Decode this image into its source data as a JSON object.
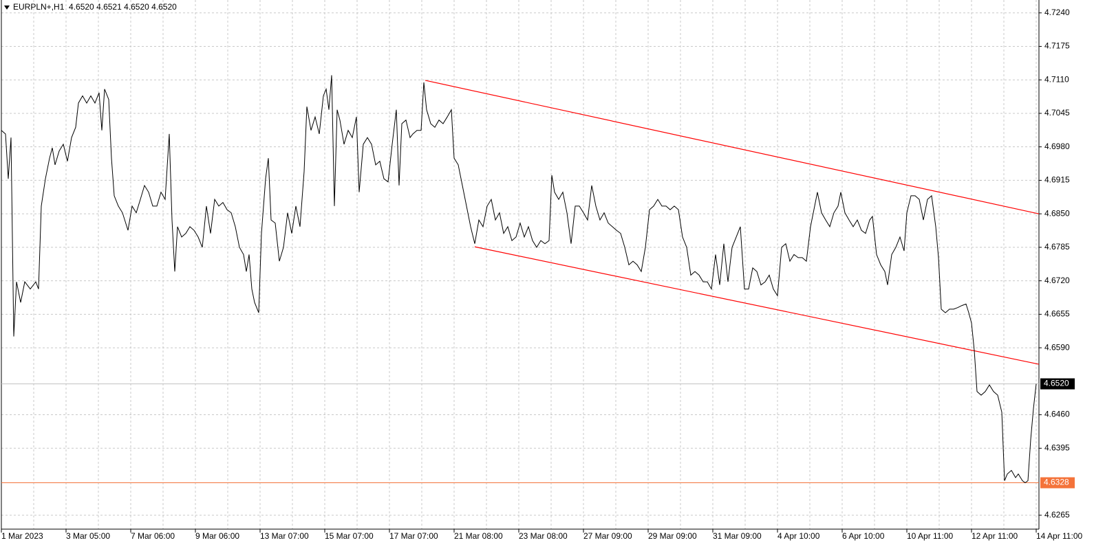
{
  "chart_data": {
    "type": "line",
    "title": "EURPLN+,H1  4.6520 4.6521 4.6520 4.6520",
    "color": "#000000",
    "x": [
      0,
      3,
      5,
      7,
      9,
      11,
      14,
      17,
      21,
      25,
      27,
      29,
      32,
      35,
      37,
      39,
      42,
      45,
      48,
      51,
      54,
      56,
      59,
      62,
      65,
      68,
      71,
      73,
      75,
      78,
      80,
      82,
      85,
      88,
      92,
      95,
      98,
      101,
      104,
      107,
      110,
      113,
      116,
      119,
      122,
      124,
      126,
      128,
      131,
      134,
      137,
      140,
      143,
      146,
      149,
      152,
      155,
      158,
      161,
      164,
      167,
      170,
      173,
      176,
      178,
      180,
      182,
      184,
      187,
      189,
      192,
      194,
      196,
      199,
      202,
      205,
      208,
      211,
      214,
      217,
      220,
      222,
      225,
      228,
      231,
      234,
      236,
      238,
      240,
      242,
      244,
      246,
      249,
      252,
      255,
      258,
      260,
      263,
      266,
      269,
      272,
      275,
      278,
      281,
      284,
      287,
      289,
      291,
      294,
      297,
      299,
      302,
      305,
      307,
      309,
      312,
      315,
      318,
      321,
      324,
      327,
      329,
      332,
      335,
      338,
      341,
      344,
      347,
      350,
      353,
      356,
      359,
      362,
      365,
      368,
      371,
      374,
      377,
      380,
      383,
      386,
      389,
      392,
      395,
      398,
      400,
      402,
      405,
      408,
      411,
      414,
      417,
      420,
      423,
      426,
      429,
      432,
      435,
      438,
      441,
      444,
      447,
      450,
      453,
      456,
      459,
      462,
      465,
      468,
      471,
      474,
      477,
      480,
      483,
      486,
      489,
      492,
      495,
      498,
      501,
      504,
      507,
      510,
      513,
      516,
      519,
      522,
      525,
      528,
      531,
      534,
      537,
      540,
      543,
      546,
      549,
      552,
      555,
      558,
      561,
      564,
      567,
      570,
      573,
      576,
      579,
      582,
      585,
      588,
      591,
      593,
      596,
      599,
      602,
      605,
      608,
      610,
      613,
      616,
      619,
      622,
      625,
      628,
      631,
      633,
      636,
      639,
      642,
      644,
      647,
      650,
      653,
      656,
      658,
      661,
      664,
      667,
      670,
      673,
      676,
      679,
      681,
      683,
      686,
      689,
      692,
      695,
      698,
      701,
      703,
      705,
      707,
      709,
      712,
      715,
      718,
      721,
      724,
      727,
      729,
      731,
      734,
      737,
      739,
      742,
      744,
      746,
      748,
      750,
      752
    ],
    "values": [
      4.7012,
      4.7005,
      4.6918,
      4.6998,
      4.6612,
      4.6718,
      4.6678,
      4.6718,
      4.6704,
      4.6718,
      4.6704,
      4.6865,
      4.6918,
      4.6958,
      4.6978,
      4.6945,
      4.6972,
      4.6985,
      4.6952,
      4.6998,
      4.7018,
      4.7065,
      4.7079,
      4.7065,
      4.7079,
      4.7065,
      4.7085,
      4.7012,
      4.7092,
      4.7072,
      4.6958,
      4.6885,
      4.6865,
      4.6852,
      4.6818,
      4.6865,
      4.6852,
      4.6878,
      4.6905,
      4.6892,
      4.6865,
      4.6865,
      4.6892,
      4.6878,
      4.7005,
      4.6838,
      4.6738,
      4.6825,
      4.6805,
      4.6812,
      4.6825,
      4.6818,
      4.6805,
      4.6785,
      4.6865,
      4.6812,
      4.6878,
      4.6865,
      4.6872,
      4.6858,
      4.6852,
      4.6825,
      4.6785,
      4.6771,
      4.6738,
      4.6771,
      4.6704,
      4.6678,
      4.6658,
      4.6812,
      4.6918,
      4.6958,
      4.6838,
      4.6832,
      4.6758,
      4.6785,
      4.6852,
      4.6812,
      4.6865,
      4.6825,
      4.6932,
      4.7058,
      4.7012,
      4.7038,
      4.7005,
      4.7079,
      4.7092,
      4.7052,
      4.7119,
      4.6865,
      4.7052,
      4.7032,
      4.6985,
      4.7012,
      4.6998,
      4.7038,
      4.6892,
      4.6985,
      4.6998,
      4.6985,
      4.6945,
      4.6952,
      4.6918,
      4.6912,
      4.6985,
      4.7052,
      4.6905,
      4.7025,
      4.7032,
      4.6998,
      4.7005,
      4.7012,
      4.7012,
      4.7105,
      4.7052,
      4.7025,
      4.7018,
      4.7032,
      4.7025,
      4.7038,
      4.7052,
      4.6958,
      4.6945,
      4.6905,
      4.6865,
      4.6825,
      4.6792,
      4.6838,
      4.6825,
      4.6865,
      4.6878,
      4.6838,
      4.6852,
      4.6812,
      4.6825,
      4.6798,
      4.6805,
      4.6832,
      4.6805,
      4.6825,
      4.6798,
      4.6785,
      4.6798,
      4.6792,
      4.6798,
      4.6925,
      4.6892,
      4.6878,
      4.6892,
      4.6852,
      4.6792,
      4.6865,
      4.6865,
      4.6852,
      4.6838,
      4.6905,
      4.6865,
      4.6838,
      4.6852,
      4.6832,
      4.6825,
      4.6818,
      4.6812,
      4.6785,
      4.6751,
      4.6758,
      4.6751,
      4.6738,
      4.6785,
      4.6858,
      4.6865,
      4.6878,
      4.6865,
      4.6865,
      4.6858,
      4.6865,
      4.6858,
      4.6805,
      4.6785,
      4.6731,
      4.6738,
      4.6731,
      4.6718,
      4.6718,
      4.6704,
      4.6771,
      4.6712,
      4.6792,
      4.6718,
      4.6785,
      4.6805,
      4.6825,
      4.6704,
      4.6704,
      4.6745,
      4.6738,
      4.6712,
      4.6718,
      4.6731,
      4.6704,
      4.6691,
      4.6785,
      4.6792,
      4.6758,
      4.6771,
      4.6765,
      4.6765,
      4.6758,
      4.6825,
      4.6865,
      4.6892,
      4.6852,
      4.6838,
      4.6825,
      4.6852,
      4.6865,
      4.6892,
      4.6852,
      4.6838,
      4.6825,
      4.6838,
      4.6818,
      4.6812,
      4.6838,
      4.6845,
      4.6771,
      4.6751,
      4.6738,
      4.6712,
      4.6771,
      4.6785,
      4.6805,
      4.6778,
      4.6852,
      4.6885,
      4.6885,
      4.6878,
      4.6838,
      4.6878,
      4.6885,
      4.6825,
      4.6765,
      4.6665,
      4.6658,
      4.6665,
      4.6665,
      4.6668,
      4.6672,
      4.6675,
      4.6658,
      4.6638,
      4.6585,
      4.6505,
      4.6498,
      4.6505,
      4.6518,
      4.6505,
      4.6498,
      4.6465,
      4.6332,
      4.6345,
      4.6352,
      4.6338,
      4.6345,
      4.6332,
      4.6328,
      4.6332,
      4.6412,
      4.6472,
      4.652
    ],
    "xlim": [
      0,
      754
    ],
    "xticks": [
      {
        "value": 0,
        "label": "1 Mar 2023"
      },
      {
        "value": 47,
        "label": "3 Mar 05:00"
      },
      {
        "value": 94,
        "label": "7 Mar 06:00"
      },
      {
        "value": 141,
        "label": "9 Mar 06:00"
      },
      {
        "value": 188,
        "label": "13 Mar 07:00"
      },
      {
        "value": 235,
        "label": "15 Mar 07:00"
      },
      {
        "value": 282,
        "label": "17 Mar 07:00"
      },
      {
        "value": 329,
        "label": "21 Mar 08:00"
      },
      {
        "value": 376,
        "label": "23 Mar 08:00"
      },
      {
        "value": 423,
        "label": "27 Mar 09:00"
      },
      {
        "value": 470,
        "label": "29 Mar 09:00"
      },
      {
        "value": 517,
        "label": "31 Mar 09:00"
      },
      {
        "value": 564,
        "label": "4 Apr 10:00"
      },
      {
        "value": 611,
        "label": "6 Apr 10:00"
      },
      {
        "value": 658,
        "label": "10 Apr 11:00"
      },
      {
        "value": 705,
        "label": "12 Apr 11:00"
      },
      {
        "value": 752,
        "label": "14 Apr 11:00"
      }
    ],
    "ylim": [
      4.6238,
      4.7265
    ],
    "yticks": [
      {
        "value": 4.724,
        "label": "4.7240"
      },
      4.7175,
      {
        "value": 4.711,
        "label": "4.7110"
      },
      4.7045,
      {
        "value": 4.698,
        "label": "4.6980"
      },
      4.6915,
      {
        "value": 4.685,
        "label": "4.6850"
      },
      4.6785,
      {
        "value": 4.672,
        "label": "4.6720"
      },
      4.6655,
      {
        "value": 4.659,
        "label": "4.6590"
      },
      {
        "value": 4.646,
        "label": "4.6460"
      },
      4.6395,
      4.6265
    ],
    "grid": true,
    "price_lines": [
      {
        "value": 4.652,
        "label": "4.6520",
        "color": "#c0c0c0",
        "label_color": "#000000"
      },
      {
        "value": 4.6328,
        "label": "4.6328",
        "color": "#f4733a",
        "label_color": "#f4733a"
      }
    ],
    "trendlines": [
      {
        "color": "#ff0000",
        "x": [
          308,
          754
        ],
        "values": [
          4.7109,
          4.685
        ]
      },
      {
        "color": "#ff0000",
        "x": [
          344,
          754
        ],
        "values": [
          4.6786,
          4.6558
        ]
      }
    ]
  }
}
